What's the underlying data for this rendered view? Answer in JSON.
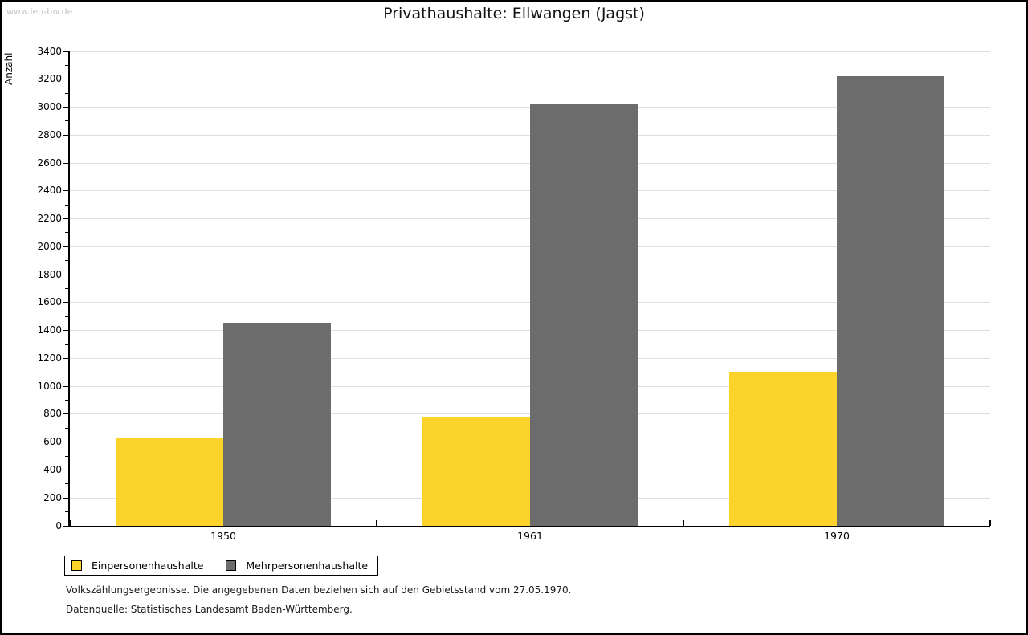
{
  "watermark": "www.leo-bw.de",
  "title": "Privathaushalte: Ellwangen (Jagst)",
  "chart_data": {
    "type": "bar",
    "title": "Privathaushalte: Ellwangen (Jagst)",
    "xlabel": "",
    "ylabel": "Anzahl",
    "categories": [
      "1950",
      "1961",
      "1970"
    ],
    "series": [
      {
        "name": "Einpersonenhaushalte",
        "color": "#FCD32B",
        "values": [
          630,
          778,
          1102
        ]
      },
      {
        "name": "Mehrpersonenhaushalte",
        "color": "#6C6C6C",
        "values": [
          1455,
          3020,
          3220
        ]
      }
    ],
    "ylim": [
      0,
      3400
    ],
    "ytick_step": 200,
    "minor_tick_step": 100,
    "grid": true,
    "grid_color": "#dedede",
    "axis_color": "#000000",
    "legend_position": "bottom-left"
  },
  "footer": {
    "line1": "Volkszählungsergebnisse. Die angegebenen Daten beziehen sich auf den Gebietsstand vom 27.05.1970.",
    "line2": "Datenquelle: Statistisches Landesamt Baden-Württemberg."
  },
  "colors": {
    "background": "#ffffff",
    "frame_border": "#000000",
    "watermark_text": "#c8c8c8"
  }
}
